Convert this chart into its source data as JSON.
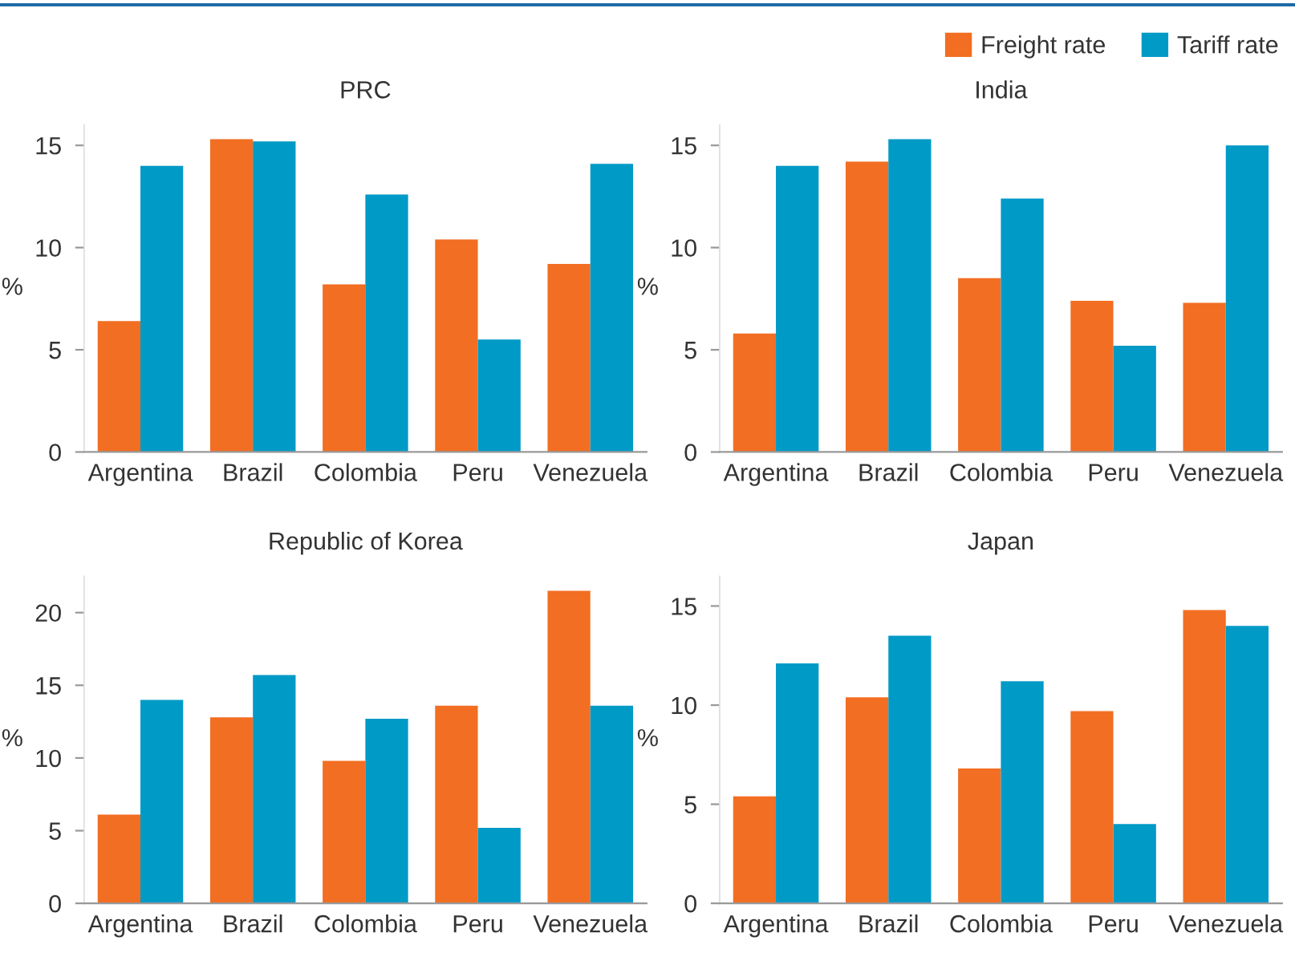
{
  "chart_data": [
    {
      "type": "bar",
      "title": "PRC",
      "ylabel": "%",
      "categories": [
        "Argentina",
        "Brazil",
        "Colombia",
        "Peru",
        "Venezuela"
      ],
      "ylim": [
        0,
        16
      ],
      "yticks": [
        0,
        5,
        10,
        15
      ],
      "grid": false,
      "legend": "top right",
      "series": [
        {
          "name": "Freight rate",
          "color": "#f26e22",
          "values": [
            6.4,
            15.3,
            8.2,
            10.4,
            9.2
          ]
        },
        {
          "name": "Tariff rate",
          "color": "#009ac7",
          "values": [
            14.0,
            15.2,
            12.6,
            5.5,
            14.1
          ]
        }
      ]
    },
    {
      "type": "bar",
      "title": "India",
      "ylabel": "%",
      "categories": [
        "Argentina",
        "Brazil",
        "Colombia",
        "Peru",
        "Venezuela"
      ],
      "ylim": [
        0,
        16
      ],
      "yticks": [
        0,
        5,
        10,
        15
      ],
      "grid": false,
      "series": [
        {
          "color": "#f26e22",
          "values": [
            5.8,
            14.2,
            8.5,
            7.4,
            7.3
          ]
        },
        {
          "color": "#009ac7",
          "values": [
            14.0,
            15.3,
            12.4,
            5.2,
            15.0
          ]
        }
      ]
    },
    {
      "type": "bar",
      "title": "Republic of Korea",
      "ylabel": "%",
      "categories": [
        "Argentina",
        "Brazil",
        "Colombia",
        "Peru",
        "Venezuela"
      ],
      "ylim": [
        0,
        22.5
      ],
      "yticks": [
        0,
        5,
        10,
        15,
        20
      ],
      "grid": false,
      "series": [
        {
          "color": "#f26e22",
          "values": [
            6.1,
            12.8,
            9.8,
            13.6,
            21.5
          ]
        },
        {
          "color": "#009ac7",
          "values": [
            14.0,
            15.7,
            12.7,
            5.2,
            13.6
          ]
        }
      ]
    },
    {
      "type": "bar",
      "title": "Japan",
      "ylabel": "%",
      "categories": [
        "Argentina",
        "Brazil",
        "Colombia",
        "Peru",
        "Venezuela"
      ],
      "ylim": [
        0,
        16.5
      ],
      "yticks": [
        0,
        5,
        10,
        15
      ],
      "grid": false,
      "series": [
        {
          "color": "#f26e22",
          "values": [
            5.4,
            10.4,
            6.8,
            9.7,
            14.8
          ]
        },
        {
          "color": "#009ac7",
          "values": [
            12.1,
            13.5,
            11.2,
            4.0,
            14.0
          ]
        }
      ]
    }
  ]
}
